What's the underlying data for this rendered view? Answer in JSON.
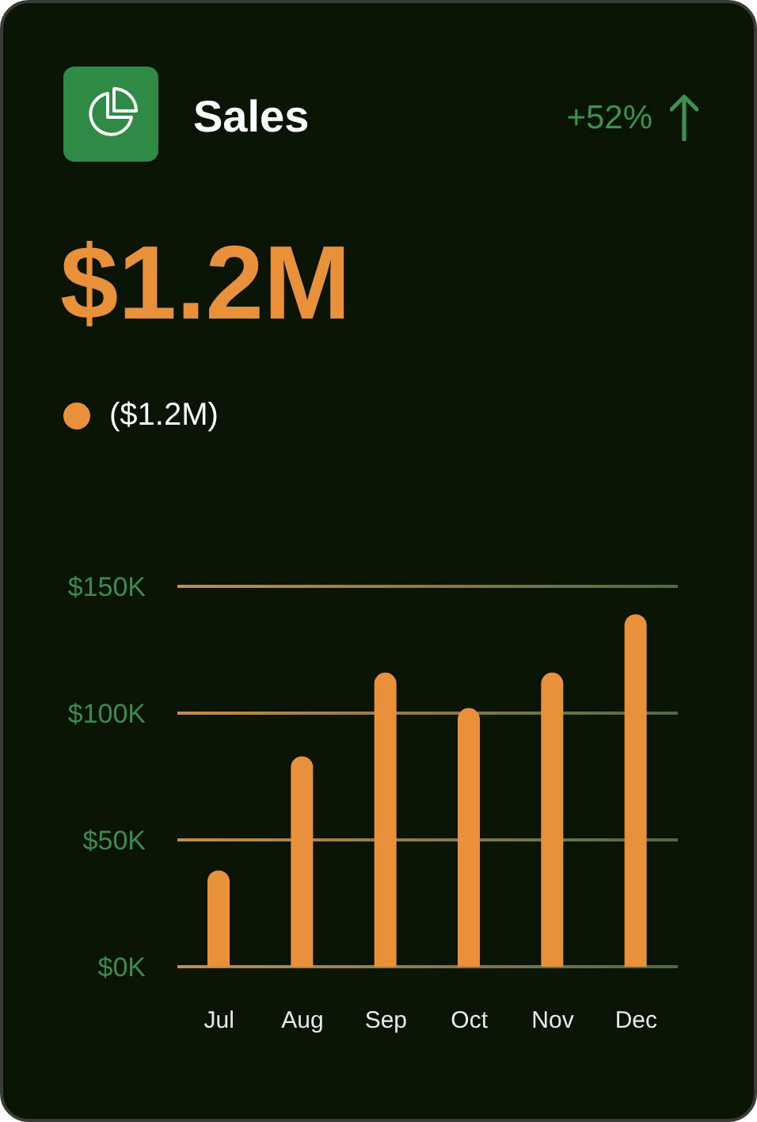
{
  "chart_data": {
    "type": "bar",
    "title": "Sales",
    "subtitle": "$1.2M",
    "annotations": [
      "+52%"
    ],
    "categories": [
      "Jul",
      "Aug",
      "Sep",
      "Oct",
      "Nov",
      "Dec"
    ],
    "series": [
      {
        "name": "($1.2M)",
        "color": "#e8903a",
        "values": [
          38,
          83,
          116,
          102,
          116,
          139
        ]
      }
    ],
    "ylim": [
      0,
      150
    ],
    "yticks": [
      {
        "value": 0,
        "label": "$0K"
      },
      {
        "value": 50,
        "label": "$50K"
      },
      {
        "value": 100,
        "label": "$100K"
      },
      {
        "value": 150,
        "label": "$150K"
      }
    ],
    "grid": "y",
    "legend": "top left"
  }
}
